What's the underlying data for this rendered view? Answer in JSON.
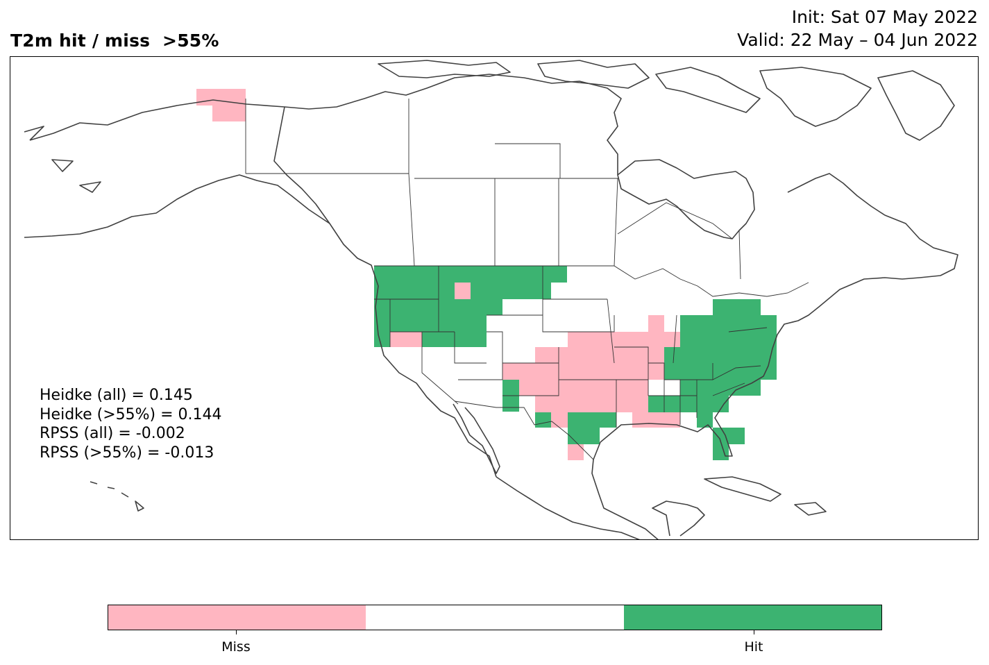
{
  "header": {
    "title": "T2m hit / miss  >55%",
    "init": "Init: Sat 07 May 2022",
    "valid": "Valid: 22 May – 04 Jun 2022"
  },
  "stats": [
    "Heidke (all) = 0.145",
    "Heidke (>55%) = 0.144",
    "RPSS (all) = -0.002",
    "RPSS (>55%) = -0.013"
  ],
  "legend": {
    "categories": [
      {
        "label": "Miss",
        "color": "#ffb6c1"
      },
      {
        "label": "",
        "color": "#ffffff"
      },
      {
        "label": "Hit",
        "color": "#3cb371"
      }
    ],
    "tick_labels": [
      "Miss",
      "Hit"
    ]
  },
  "colors": {
    "miss": "#ffb6c1",
    "hit": "#3cb371",
    "coastline": "#404040",
    "border": "#333333"
  },
  "map": {
    "projection": "lat-lon",
    "region": "North America",
    "lon_range": [
      -170,
      -50
    ],
    "lat_range": [
      10,
      75
    ],
    "cell_size_deg": 2
  }
}
